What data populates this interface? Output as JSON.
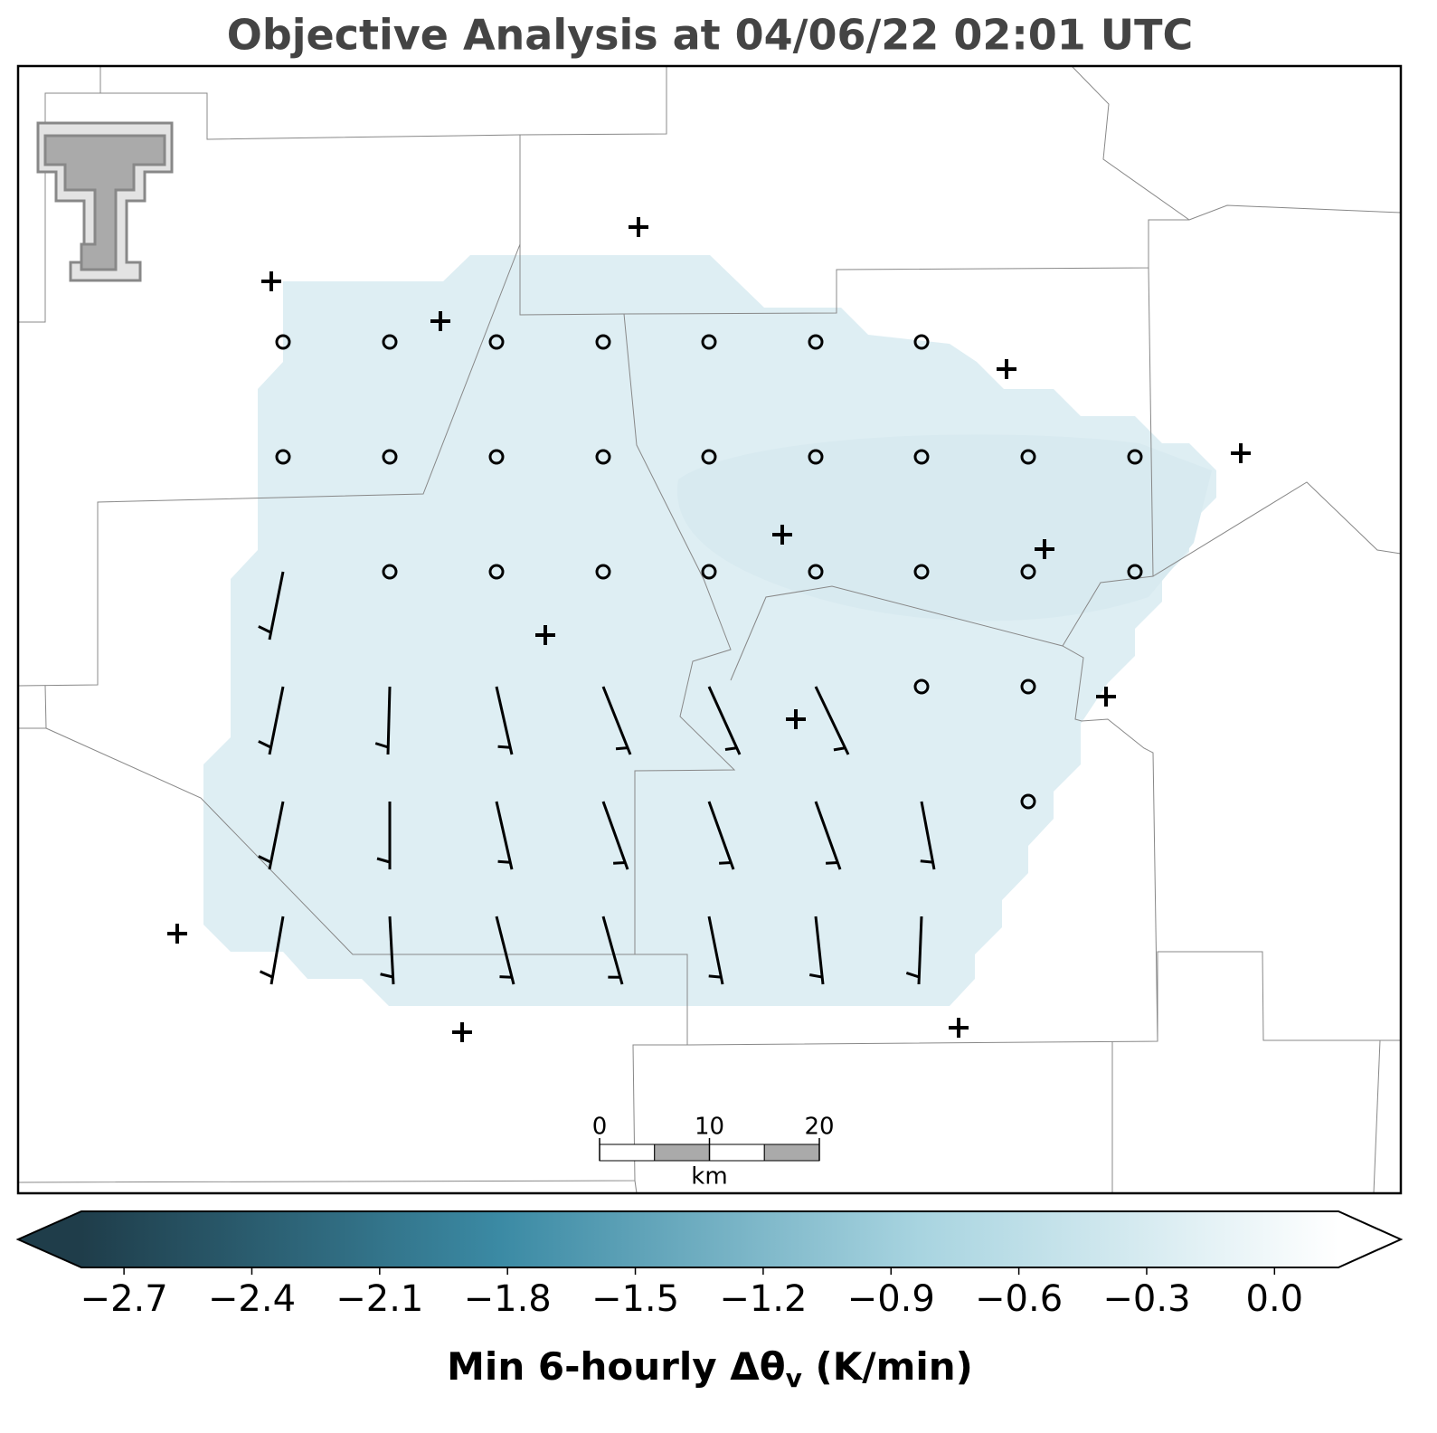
{
  "chart_data": {
    "type": "map",
    "title": "Objective Analysis at 04/06/22 02:01 UTC",
    "colorbar": {
      "clim": [
        -2.8,
        0.15
      ],
      "colors": [
        "#1f3d4a",
        "#3b8aa4",
        "#a8d4e0",
        "#ffffff"
      ],
      "ticks": [
        {
          "value": -2.7,
          "label": "−2.7"
        },
        {
          "value": -2.4,
          "label": "−2.4"
        },
        {
          "value": -2.1,
          "label": "−2.1"
        },
        {
          "value": -1.8,
          "label": "−1.8"
        },
        {
          "value": -1.5,
          "label": "−1.5"
        },
        {
          "value": -1.2,
          "label": "−1.2"
        },
        {
          "value": -0.9,
          "label": "−0.9"
        },
        {
          "value": -0.6,
          "label": "−0.6"
        },
        {
          "value": -0.3,
          "label": "−0.3"
        },
        {
          "value": 0.0,
          "label": "0.0"
        }
      ],
      "label": {
        "main": "Min 6-hourly Δθ",
        "sub": "v",
        "tail": " (K/min)"
      }
    },
    "scale_bar": {
      "ticks": [
        0,
        10,
        20
      ],
      "unit": "km"
    }
  }
}
